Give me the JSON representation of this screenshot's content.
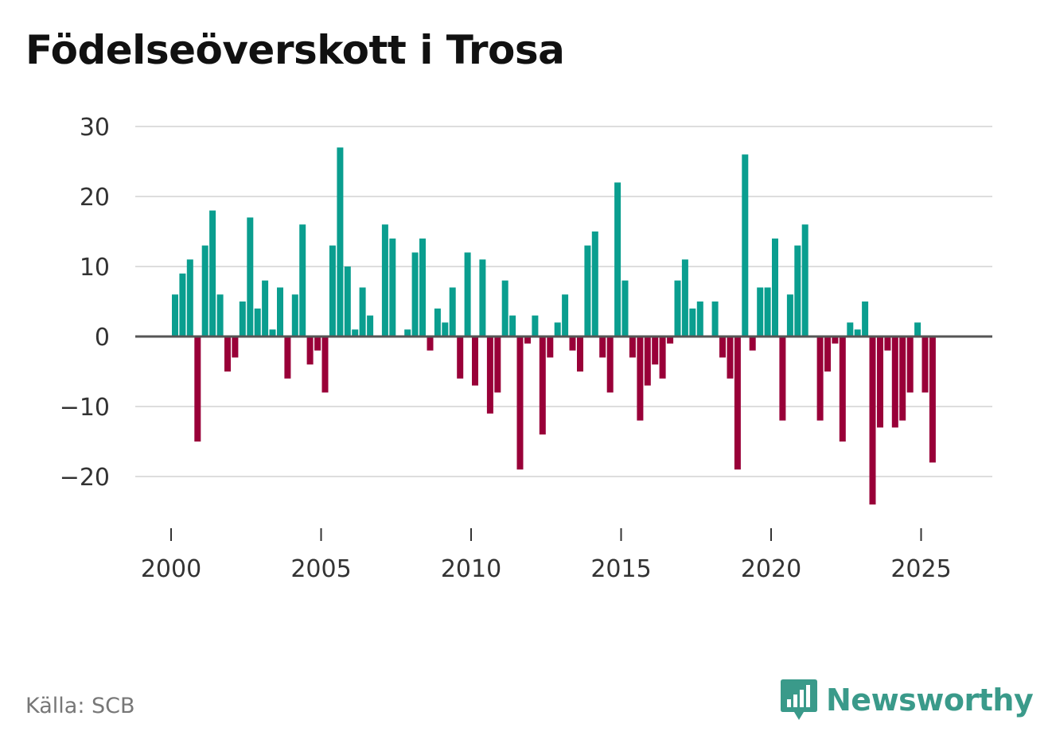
{
  "title": "Födelseöverskott i Trosa",
  "source": "Källa: SCB",
  "brand": {
    "name": "Newsworthy",
    "icon": "newsworthy-logo-icon",
    "color": "#3a9a8a"
  },
  "colors": {
    "positive": "#0a9e8f",
    "negative": "#990038",
    "grid": "#dddddd",
    "zero": "#555555"
  },
  "chart_data": {
    "type": "bar",
    "title": "Födelseöverskott i Trosa",
    "xlabel": "",
    "ylabel": "",
    "ylim": [
      -26,
      30
    ],
    "xlim": [
      1999.0,
      2027.3
    ],
    "y_ticks": [
      30,
      20,
      10,
      0,
      -10,
      -20
    ],
    "y_tick_labels": [
      "30",
      "20",
      "10",
      "0",
      "−10",
      "−20"
    ],
    "x_ticks": [
      2000,
      2005,
      2010,
      2015,
      2020,
      2025
    ],
    "x_tick_labels": [
      "2000",
      "2005",
      "2010",
      "2015",
      "2020",
      "2025"
    ],
    "frequency": "quarterly",
    "start": 2000.0,
    "values": [
      6,
      9,
      11,
      -15,
      13,
      18,
      6,
      -5,
      -3,
      5,
      17,
      4,
      8,
      1,
      7,
      -6,
      6,
      16,
      -4,
      -2,
      -8,
      13,
      27,
      10,
      1,
      7,
      3,
      0,
      16,
      14,
      0,
      1,
      12,
      14,
      -2,
      4,
      2,
      7,
      -6,
      12,
      -7,
      11,
      -11,
      -8,
      8,
      3,
      -19,
      -1,
      3,
      -14,
      -3,
      2,
      6,
      -2,
      -5,
      13,
      15,
      -3,
      -8,
      22,
      8,
      -3,
      -12,
      -7,
      -4,
      -6,
      -1,
      8,
      11,
      4,
      5,
      0,
      5,
      -3,
      -6,
      -19,
      26,
      -2,
      7,
      7,
      14,
      -12,
      6,
      13,
      16,
      0,
      -12,
      -5,
      -1,
      -15,
      2,
      1,
      5,
      -24,
      -13,
      -2,
      -13,
      -12,
      -8,
      2,
      -8,
      -18
    ]
  }
}
